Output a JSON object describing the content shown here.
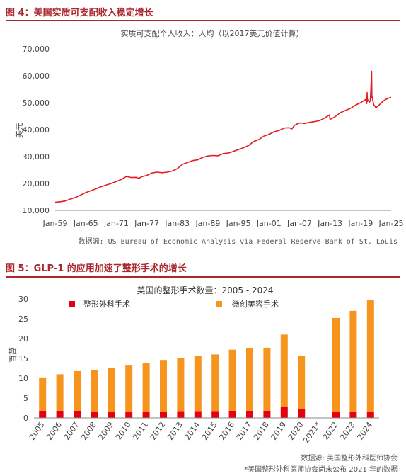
{
  "figures": {
    "fig1_title": "图 4：美国实质可支配收入稳定增长",
    "fig1_source": "数据源: US Bureau of Economic Analysis via Federal Reserve Bank of St. Louis",
    "fig2_title": "图 5：GLP-1 的应用加速了整形手术的增长",
    "fig2_source": "数据源: 美国整形外科医师协会",
    "fig2_note": "*美国整形外科医师协会尚未公布 2021 年的数据"
  },
  "chart_data": [
    {
      "type": "line",
      "title": "实质可支配个人收入：人均（以2017美元价值计算）",
      "ylabel": "美元",
      "xlabel": "",
      "ylim": [
        10000,
        70000
      ],
      "y_ticks": [
        "10,000",
        "20,000",
        "30,000",
        "40,000",
        "50,000",
        "60,000",
        "70,000"
      ],
      "x_ticks": [
        "Jan-59",
        "Jan-65",
        "Jan-71",
        "Jan-77",
        "Jan-83",
        "Jan-89",
        "Jan-95",
        "Jan-01",
        "Jan-07",
        "Jan-13",
        "Jan-19",
        "Jan-25"
      ],
      "x_range": [
        1959,
        2025
      ],
      "grid": false,
      "color": "#e31b23",
      "series": [
        {
          "x": [
            1959.0,
            1960.0,
            1961.0,
            1962.0,
            1963.0,
            1964.0,
            1965.0,
            1966.0,
            1967.0,
            1968.0,
            1969.0,
            1970.0,
            1971.0,
            1972.0,
            1973.0,
            1974.0,
            1974.9,
            1975.4,
            1976.0,
            1977.0,
            1978.0,
            1979.0,
            1980.0,
            1981.0,
            1982.0,
            1983.0,
            1984.0,
            1985.0,
            1986.0,
            1987.0,
            1988.0,
            1989.0,
            1990.0,
            1991.0,
            1992.0,
            1993.0,
            1994.0,
            1995.0,
            1996.0,
            1997.0,
            1998.0,
            1999.0,
            2000.0,
            2001.0,
            2002.0,
            2003.0,
            2004.0,
            2005.0,
            2005.5,
            2006.0,
            2007.0,
            2008.0,
            2009.0,
            2010.0,
            2011.0,
            2012.0,
            2012.9,
            2013.0,
            2014.0,
            2015.0,
            2016.0,
            2017.0,
            2018.0,
            2019.0,
            2020.0,
            2020.2,
            2020.28,
            2020.35,
            2020.5,
            2020.7,
            2020.9,
            2021.0,
            2021.17,
            2021.22,
            2021.3,
            2021.4,
            2021.6,
            2021.8,
            2022.0,
            2022.5,
            2023.0,
            2023.5,
            2024.0,
            2024.5,
            2025.0
          ],
          "y": [
            13000,
            13200,
            13500,
            14200,
            14800,
            15700,
            16600,
            17300,
            18000,
            18800,
            19400,
            20000,
            20700,
            21500,
            22600,
            22200,
            22300,
            21900,
            22500,
            23000,
            23900,
            24200,
            24000,
            24200,
            24600,
            25500,
            27100,
            27800,
            28500,
            28800,
            29700,
            30200,
            30400,
            30300,
            31100,
            31300,
            31900,
            32600,
            33300,
            34100,
            35600,
            36300,
            37600,
            38200,
            39200,
            39700,
            40600,
            40700,
            40300,
            41600,
            42500,
            42300,
            42700,
            43000,
            43400,
            44400,
            45500,
            43800,
            44800,
            46300,
            47100,
            47900,
            49100,
            50000,
            51200,
            49700,
            53800,
            50500,
            51000,
            50200,
            50600,
            54500,
            61700,
            51800,
            52100,
            50800,
            49200,
            48700,
            48100,
            48900,
            49900,
            50700,
            51300,
            51700,
            52000
          ]
        }
      ]
    },
    {
      "type": "bar",
      "stacked": true,
      "title": "美国的整形手术数量：2005 - 2024",
      "ylabel": "百萬",
      "xlabel": "",
      "ylim": [
        0,
        30
      ],
      "y_ticks": [
        "0",
        "5",
        "10",
        "15",
        "20",
        "25",
        "30"
      ],
      "legend_position": "top",
      "grid": false,
      "categories": [
        "2005",
        "2006",
        "2007",
        "2008",
        "2009",
        "2010",
        "2011",
        "2012",
        "2013",
        "2014",
        "2015",
        "2016",
        "2017",
        "2018",
        "2019",
        "2020",
        "2021*",
        "2022",
        "2023",
        "2024"
      ],
      "series": [
        {
          "name": "整形外科手术",
          "color": "#e50012",
          "values": [
            1.8,
            1.8,
            1.8,
            1.6,
            1.5,
            1.6,
            1.6,
            1.6,
            1.7,
            1.7,
            1.7,
            1.8,
            1.8,
            1.8,
            2.7,
            2.3,
            null,
            1.6,
            1.6,
            1.6
          ]
        },
        {
          "name": "微创美容手术",
          "color": "#f7941d",
          "values": [
            8.4,
            9.2,
            10.0,
            10.4,
            11.0,
            11.6,
            12.2,
            13.0,
            13.4,
            13.9,
            14.3,
            15.4,
            15.7,
            15.9,
            18.3,
            13.3,
            null,
            23.6,
            25.4,
            28.2
          ]
        }
      ]
    }
  ]
}
